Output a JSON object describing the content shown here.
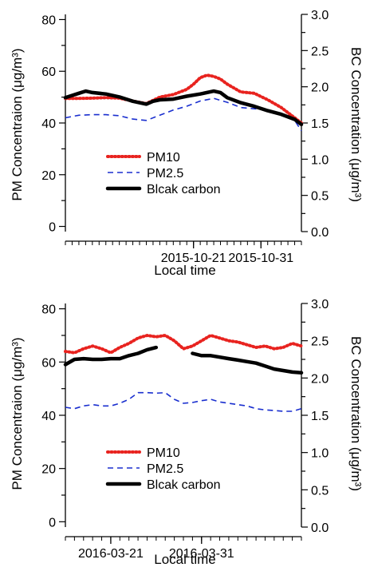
{
  "chart_data": [
    {
      "type": "line",
      "title": "",
      "xlabel": "Local time",
      "ylabel_left": "PM Concentraion (μg/m³)",
      "ylabel_right": "BC Concentration (μg/m³)",
      "x_ticks": [
        "2015-10-21",
        "2015-10-31"
      ],
      "x_tick_days": [
        19,
        29
      ],
      "xlim": [
        0,
        35
      ],
      "ylim_left": [
        -2,
        82
      ],
      "ylim_right": [
        0,
        3.0
      ],
      "yticks_left": [
        0,
        20,
        40,
        60,
        80
      ],
      "yticks_right": [
        "0.0",
        "0.5",
        "1.0",
        "1.5",
        "2.0",
        "2.5",
        "3.0"
      ],
      "grid": false,
      "legend_position": "lower-center",
      "series": [
        {
          "name": "PM10",
          "axis": "left",
          "style": "dotted",
          "color": "#e8231f",
          "x": [
            0,
            2,
            4,
            6,
            8,
            10,
            12,
            14,
            16,
            18,
            19,
            20,
            21,
            22,
            23,
            24,
            26,
            28,
            30,
            32,
            34,
            35
          ],
          "y": [
            49.5,
            49.5,
            49.6,
            49.8,
            49.6,
            48.5,
            47.5,
            50,
            51,
            53,
            55,
            57.5,
            58.5,
            58,
            57,
            55,
            52,
            51.5,
            49,
            46,
            42,
            40
          ]
        },
        {
          "name": "PM2.5",
          "axis": "left",
          "style": "dashed",
          "color": "#1a2fcf",
          "x": [
            0,
            2,
            4,
            6,
            8,
            10,
            12,
            14,
            16,
            18,
            20,
            22,
            24,
            26,
            28,
            30,
            32,
            34,
            35
          ],
          "y": [
            42,
            43,
            43.2,
            43.2,
            42.8,
            41.5,
            41,
            43,
            45,
            46.5,
            48.5,
            49.5,
            48,
            46,
            45.5,
            45,
            43,
            41,
            37
          ]
        },
        {
          "name": "Blcak carbon",
          "axis": "right",
          "style": "solid",
          "color": "#000000",
          "x": [
            0,
            1,
            2,
            3,
            4,
            6,
            8,
            10,
            12,
            13,
            14,
            16,
            18,
            20,
            22,
            23,
            24,
            26,
            28,
            30,
            32,
            34,
            35
          ],
          "y": [
            1.85,
            1.88,
            1.91,
            1.94,
            1.92,
            1.9,
            1.86,
            1.8,
            1.76,
            1.8,
            1.82,
            1.83,
            1.87,
            1.9,
            1.94,
            1.92,
            1.85,
            1.78,
            1.73,
            1.67,
            1.62,
            1.55,
            1.48
          ]
        }
      ]
    },
    {
      "type": "line",
      "title": "",
      "xlabel": "Local time",
      "ylabel_left": "PM Concentraion (μg/m³)",
      "ylabel_right": "BC Concentration (μg/m³)",
      "x_ticks": [
        "2016-03-21",
        "2016-03-31"
      ],
      "x_tick_days": [
        5,
        15
      ],
      "xlim": [
        0,
        26
      ],
      "ylim_left": [
        -2,
        82
      ],
      "ylim_right": [
        0,
        3.0
      ],
      "yticks_left": [
        0,
        20,
        40,
        60,
        80
      ],
      "yticks_right": [
        "0.0",
        "0.5",
        "1.0",
        "1.5",
        "2.0",
        "2.5",
        "3.0"
      ],
      "grid": false,
      "legend_position": "lower-center",
      "series": [
        {
          "name": "PM10",
          "axis": "left",
          "style": "dotted",
          "color": "#e8231f",
          "x": [
            0,
            1,
            2,
            3,
            4,
            5,
            6,
            7,
            8,
            9,
            10,
            11,
            12,
            13,
            14,
            15,
            16,
            17,
            18,
            19,
            20,
            21,
            22,
            23,
            24,
            25,
            26
          ],
          "y": [
            64,
            63.5,
            65,
            66,
            65,
            63.5,
            65.5,
            67,
            69,
            70,
            69.5,
            70,
            68,
            65,
            66,
            68,
            70,
            69,
            68,
            67.5,
            66.5,
            65.5,
            66,
            65,
            65.5,
            67,
            66
          ]
        },
        {
          "name": "PM2.5",
          "axis": "left",
          "style": "dashed",
          "color": "#1a2fcf",
          "x": [
            0,
            1,
            2,
            3,
            4,
            5,
            6,
            7,
            8,
            9,
            10,
            11,
            12,
            13,
            14,
            15,
            16,
            17,
            18,
            19,
            20,
            21,
            22,
            23,
            24,
            25,
            26
          ],
          "y": [
            43,
            42.5,
            43.5,
            44,
            43.5,
            43.5,
            44.5,
            46,
            48.5,
            48.5,
            48.3,
            48.5,
            46,
            44.5,
            44.8,
            45.5,
            46,
            45,
            44.5,
            44,
            43.5,
            42.5,
            42,
            41.8,
            41.5,
            41.5,
            42.5
          ]
        },
        {
          "name": "Blcak carbon",
          "axis": "right",
          "style": "solid",
          "color": "#000000",
          "x": [
            0,
            1,
            2,
            3,
            4,
            5,
            6,
            7,
            8,
            9,
            10,
            null,
            14,
            15,
            16,
            17,
            18,
            19,
            20,
            21,
            22,
            23,
            24,
            25,
            26
          ],
          "y": [
            2.18,
            2.25,
            2.26,
            2.25,
            2.25,
            2.26,
            2.26,
            2.3,
            2.33,
            2.38,
            2.41,
            null,
            2.33,
            2.3,
            2.3,
            2.28,
            2.26,
            2.24,
            2.22,
            2.2,
            2.16,
            2.12,
            2.1,
            2.08,
            2.07
          ]
        }
      ]
    }
  ]
}
